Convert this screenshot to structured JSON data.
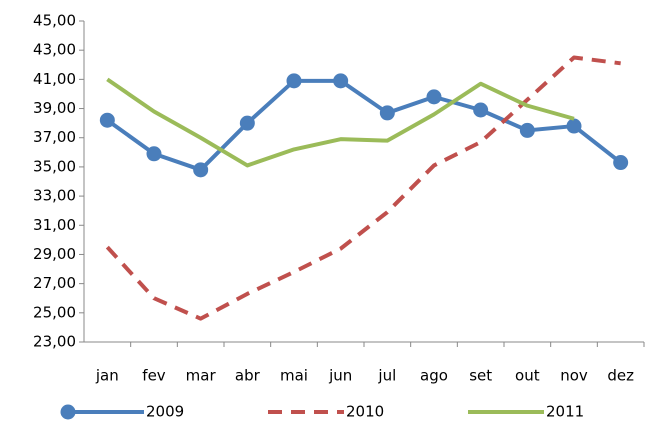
{
  "chart_data": {
    "type": "line",
    "categories": [
      "jan",
      "fev",
      "mar",
      "abr",
      "mai",
      "jun",
      "jul",
      "ago",
      "set",
      "out",
      "nov",
      "dez"
    ],
    "series": [
      {
        "name": "2009",
        "color": "#4a7ebb",
        "style": "solid",
        "markers": true,
        "values": [
          38.2,
          35.9,
          34.8,
          38.0,
          40.9,
          40.9,
          38.7,
          39.8,
          38.9,
          37.5,
          37.8,
          35.3
        ]
      },
      {
        "name": "2010",
        "color": "#c0504d",
        "style": "dashed",
        "markers": false,
        "values": [
          29.5,
          26.0,
          24.6,
          26.3,
          27.8,
          29.4,
          31.9,
          35.1,
          36.7,
          39.6,
          42.5,
          42.1
        ]
      },
      {
        "name": "2011",
        "color": "#9bbb59",
        "style": "solid",
        "markers": false,
        "values": [
          41.0,
          38.8,
          37.0,
          35.1,
          36.2,
          36.9,
          36.8,
          38.6,
          40.7,
          39.2,
          38.3,
          null
        ]
      }
    ],
    "ylim": [
      23,
      45
    ],
    "yticks": [
      {
        "value": 23,
        "label": "23,00"
      },
      {
        "value": 25,
        "label": "25,00"
      },
      {
        "value": 27,
        "label": "27,00"
      },
      {
        "value": 29,
        "label": "29,00"
      },
      {
        "value": 31,
        "label": "31,00"
      },
      {
        "value": 33,
        "label": "33,00"
      },
      {
        "value": 35,
        "label": "35,00"
      },
      {
        "value": 37,
        "label": "37,00"
      },
      {
        "value": 39,
        "label": "39,00"
      },
      {
        "value": 41,
        "label": "41,00"
      },
      {
        "value": 43,
        "label": "43,00"
      },
      {
        "value": 45,
        "label": "45,00"
      }
    ],
    "grid": false,
    "legend": "bottom"
  }
}
